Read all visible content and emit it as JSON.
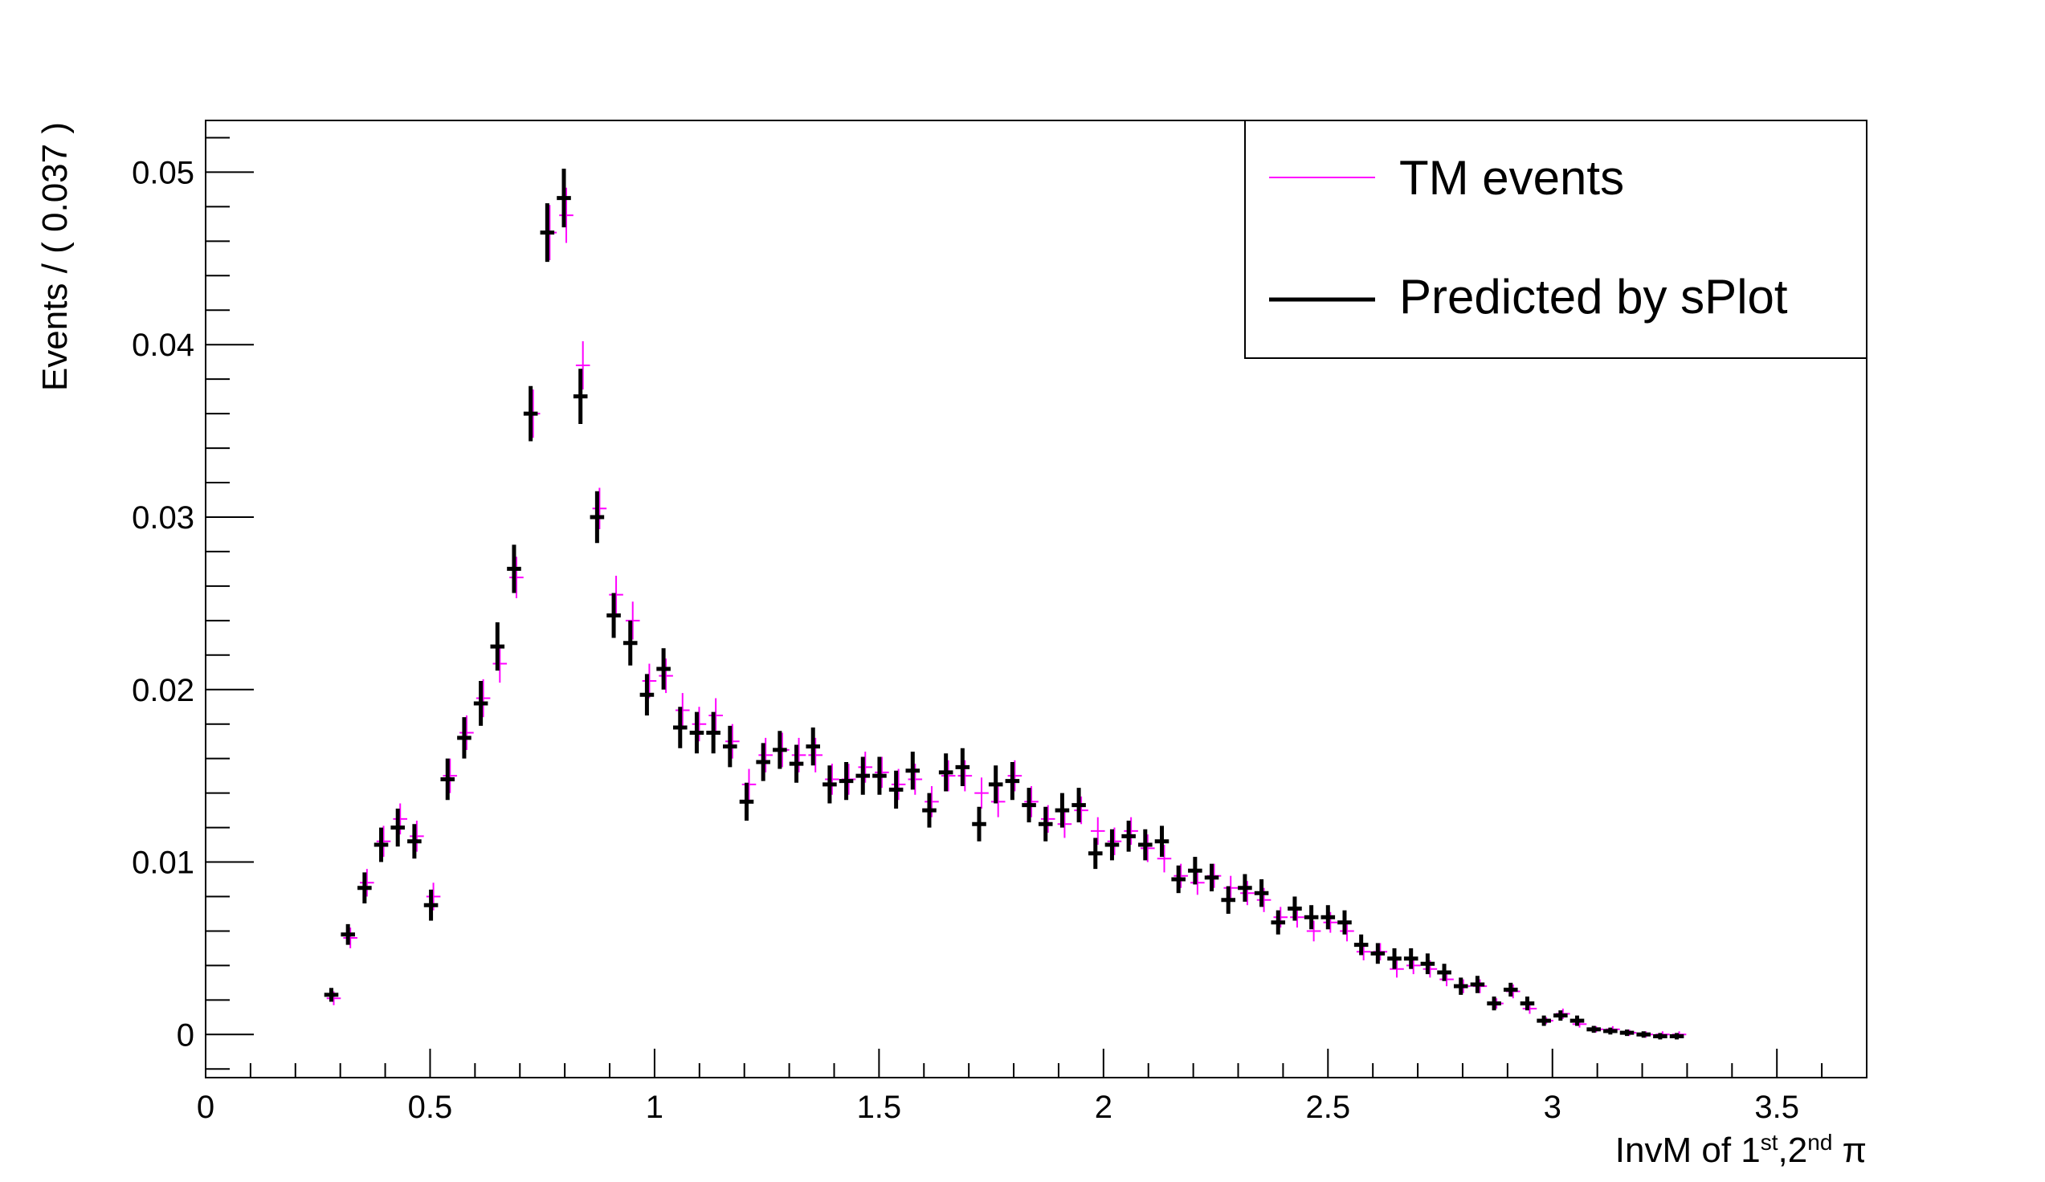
{
  "chart_data": {
    "type": "scatter",
    "title": "",
    "xlabel": {
      "main": "InvM of 1",
      "sup1": "st",
      "mid": ",2",
      "sup2": "nd",
      "end": " π"
    },
    "ylabel": "Events / ( 0.037 )",
    "xlim": [
      0,
      3.7
    ],
    "ylim": [
      -0.0025,
      0.053
    ],
    "x_ticks": [
      "0",
      "0.5",
      "1",
      "1.5",
      "2",
      "2.5",
      "3",
      "3.5"
    ],
    "y_ticks": [
      "0",
      "0.01",
      "0.02",
      "0.03",
      "0.04",
      "0.05"
    ],
    "bin_width": 0.037,
    "legend": {
      "placement": "top-right",
      "entries": [
        "TM events",
        "Predicted by sPlot"
      ]
    },
    "series": [
      {
        "name": "TM events",
        "color": "#ff00ff",
        "x": [
          0.28,
          0.317,
          0.354,
          0.391,
          0.428,
          0.465,
          0.502,
          0.539,
          0.576,
          0.613,
          0.65,
          0.687,
          0.724,
          0.761,
          0.798,
          0.835,
          0.872,
          0.909,
          0.946,
          0.983,
          1.02,
          1.057,
          1.094,
          1.131,
          1.168,
          1.205,
          1.242,
          1.279,
          1.316,
          1.353,
          1.39,
          1.427,
          1.464,
          1.501,
          1.538,
          1.575,
          1.612,
          1.649,
          1.686,
          1.723,
          1.76,
          1.797,
          1.834,
          1.871,
          1.908,
          1.945,
          1.982,
          2.019,
          2.056,
          2.093,
          2.13,
          2.167,
          2.204,
          2.241,
          2.278,
          2.315,
          2.352,
          2.389,
          2.426,
          2.463,
          2.5,
          2.537,
          2.574,
          2.611,
          2.648,
          2.685,
          2.722,
          2.759,
          2.796,
          2.833,
          2.87,
          2.907,
          2.944,
          2.981,
          3.018,
          3.055,
          3.092,
          3.129,
          3.166,
          3.203,
          3.24,
          3.277
        ],
        "y": [
          0.0021,
          0.0056,
          0.0088,
          0.0112,
          0.0125,
          0.0115,
          0.008,
          0.015,
          0.0175,
          0.0195,
          0.0215,
          0.0265,
          0.036,
          0.0465,
          0.0475,
          0.0388,
          0.0305,
          0.0255,
          0.024,
          0.0205,
          0.0208,
          0.0188,
          0.018,
          0.0185,
          0.017,
          0.0145,
          0.0162,
          0.0165,
          0.0162,
          0.0162,
          0.0148,
          0.0148,
          0.0155,
          0.0152,
          0.0145,
          0.0148,
          0.0135,
          0.015,
          0.015,
          0.014,
          0.0135,
          0.015,
          0.0135,
          0.0125,
          0.0122,
          0.013,
          0.0118,
          0.0112,
          0.0118,
          0.0108,
          0.0102,
          0.0092,
          0.0088,
          0.0092,
          0.0085,
          0.0082,
          0.0078,
          0.0068,
          0.0068,
          0.006,
          0.0065,
          0.006,
          0.0048,
          0.0048,
          0.0038,
          0.004,
          0.0038,
          0.0032,
          0.0028,
          0.0028,
          0.0018,
          0.0025,
          0.0015,
          0.0008,
          0.0012,
          0.0006,
          0.0003,
          0.0003,
          0.0001,
          0.0,
          0.0,
          0.0
        ],
        "err": [
          0.0004,
          0.0006,
          0.0008,
          0.0009,
          0.0009,
          0.0009,
          0.0008,
          0.001,
          0.001,
          0.0011,
          0.0011,
          0.0012,
          0.0014,
          0.0016,
          0.0016,
          0.0014,
          0.0012,
          0.0011,
          0.0011,
          0.001,
          0.001,
          0.001,
          0.001,
          0.001,
          0.001,
          0.0009,
          0.001,
          0.001,
          0.001,
          0.001,
          0.0009,
          0.0009,
          0.0009,
          0.0009,
          0.0009,
          0.0009,
          0.0009,
          0.0009,
          0.0009,
          0.0009,
          0.0009,
          0.0009,
          0.0009,
          0.0008,
          0.0008,
          0.0008,
          0.0008,
          0.0008,
          0.0008,
          0.0008,
          0.0008,
          0.0007,
          0.0007,
          0.0007,
          0.0007,
          0.0007,
          0.0007,
          0.0006,
          0.0006,
          0.0006,
          0.0006,
          0.0006,
          0.0005,
          0.0005,
          0.0005,
          0.0005,
          0.0005,
          0.0004,
          0.0004,
          0.0004,
          0.0003,
          0.0004,
          0.0003,
          0.0002,
          0.0003,
          0.0002,
          0.0001,
          0.0001,
          0.0001,
          0.0,
          0.0,
          0.0
        ]
      },
      {
        "name": "Predicted by sPlot",
        "color": "#000000",
        "x": [
          0.28,
          0.317,
          0.354,
          0.391,
          0.428,
          0.465,
          0.502,
          0.539,
          0.576,
          0.613,
          0.65,
          0.687,
          0.724,
          0.761,
          0.798,
          0.835,
          0.872,
          0.909,
          0.946,
          0.983,
          1.02,
          1.057,
          1.094,
          1.131,
          1.168,
          1.205,
          1.242,
          1.279,
          1.316,
          1.353,
          1.39,
          1.427,
          1.464,
          1.501,
          1.538,
          1.575,
          1.612,
          1.649,
          1.686,
          1.723,
          1.76,
          1.797,
          1.834,
          1.871,
          1.908,
          1.945,
          1.982,
          2.019,
          2.056,
          2.093,
          2.13,
          2.167,
          2.204,
          2.241,
          2.278,
          2.315,
          2.352,
          2.389,
          2.426,
          2.463,
          2.5,
          2.537,
          2.574,
          2.611,
          2.648,
          2.685,
          2.722,
          2.759,
          2.796,
          2.833,
          2.87,
          2.907,
          2.944,
          2.981,
          3.018,
          3.055,
          3.092,
          3.129,
          3.166,
          3.203,
          3.24,
          3.277
        ],
        "y": [
          0.0023,
          0.0058,
          0.0085,
          0.011,
          0.012,
          0.0112,
          0.0075,
          0.0148,
          0.0172,
          0.0192,
          0.0225,
          0.027,
          0.036,
          0.0465,
          0.0485,
          0.037,
          0.03,
          0.0243,
          0.0227,
          0.0197,
          0.0212,
          0.0178,
          0.0175,
          0.0175,
          0.0167,
          0.0135,
          0.0158,
          0.0165,
          0.0157,
          0.0167,
          0.0145,
          0.0147,
          0.015,
          0.015,
          0.0142,
          0.0153,
          0.013,
          0.0152,
          0.0155,
          0.0122,
          0.0145,
          0.0147,
          0.0133,
          0.0122,
          0.013,
          0.0133,
          0.0105,
          0.011,
          0.0115,
          0.011,
          0.0112,
          0.009,
          0.0095,
          0.0091,
          0.0078,
          0.0085,
          0.0082,
          0.0065,
          0.0073,
          0.0068,
          0.0068,
          0.0065,
          0.0052,
          0.0047,
          0.0044,
          0.0044,
          0.0041,
          0.0036,
          0.0028,
          0.0029,
          0.0018,
          0.0026,
          0.0018,
          0.0008,
          0.0011,
          0.0008,
          0.0003,
          0.0002,
          0.0001,
          0.0,
          -0.0001,
          -0.0001
        ],
        "err": [
          0.0004,
          0.0006,
          0.0009,
          0.001,
          0.0011,
          0.001,
          0.0009,
          0.0012,
          0.0012,
          0.0013,
          0.0014,
          0.0014,
          0.0016,
          0.0017,
          0.0017,
          0.0016,
          0.0015,
          0.0013,
          0.0013,
          0.0012,
          0.0012,
          0.0012,
          0.0012,
          0.0012,
          0.0012,
          0.0011,
          0.0011,
          0.0011,
          0.0011,
          0.0011,
          0.0011,
          0.0011,
          0.0011,
          0.0011,
          0.0011,
          0.0011,
          0.001,
          0.0011,
          0.0011,
          0.001,
          0.0011,
          0.0011,
          0.001,
          0.001,
          0.001,
          0.001,
          0.0009,
          0.0009,
          0.0009,
          0.0009,
          0.0009,
          0.0008,
          0.0008,
          0.0008,
          0.0008,
          0.0008,
          0.0008,
          0.0007,
          0.0007,
          0.0007,
          0.0007,
          0.0007,
          0.0006,
          0.0006,
          0.0006,
          0.0006,
          0.0006,
          0.0005,
          0.0005,
          0.0005,
          0.0004,
          0.0004,
          0.0004,
          0.0003,
          0.0003,
          0.0003,
          0.0002,
          0.0002,
          0.0001,
          0.0001,
          0.0001,
          0.0001
        ]
      }
    ]
  }
}
